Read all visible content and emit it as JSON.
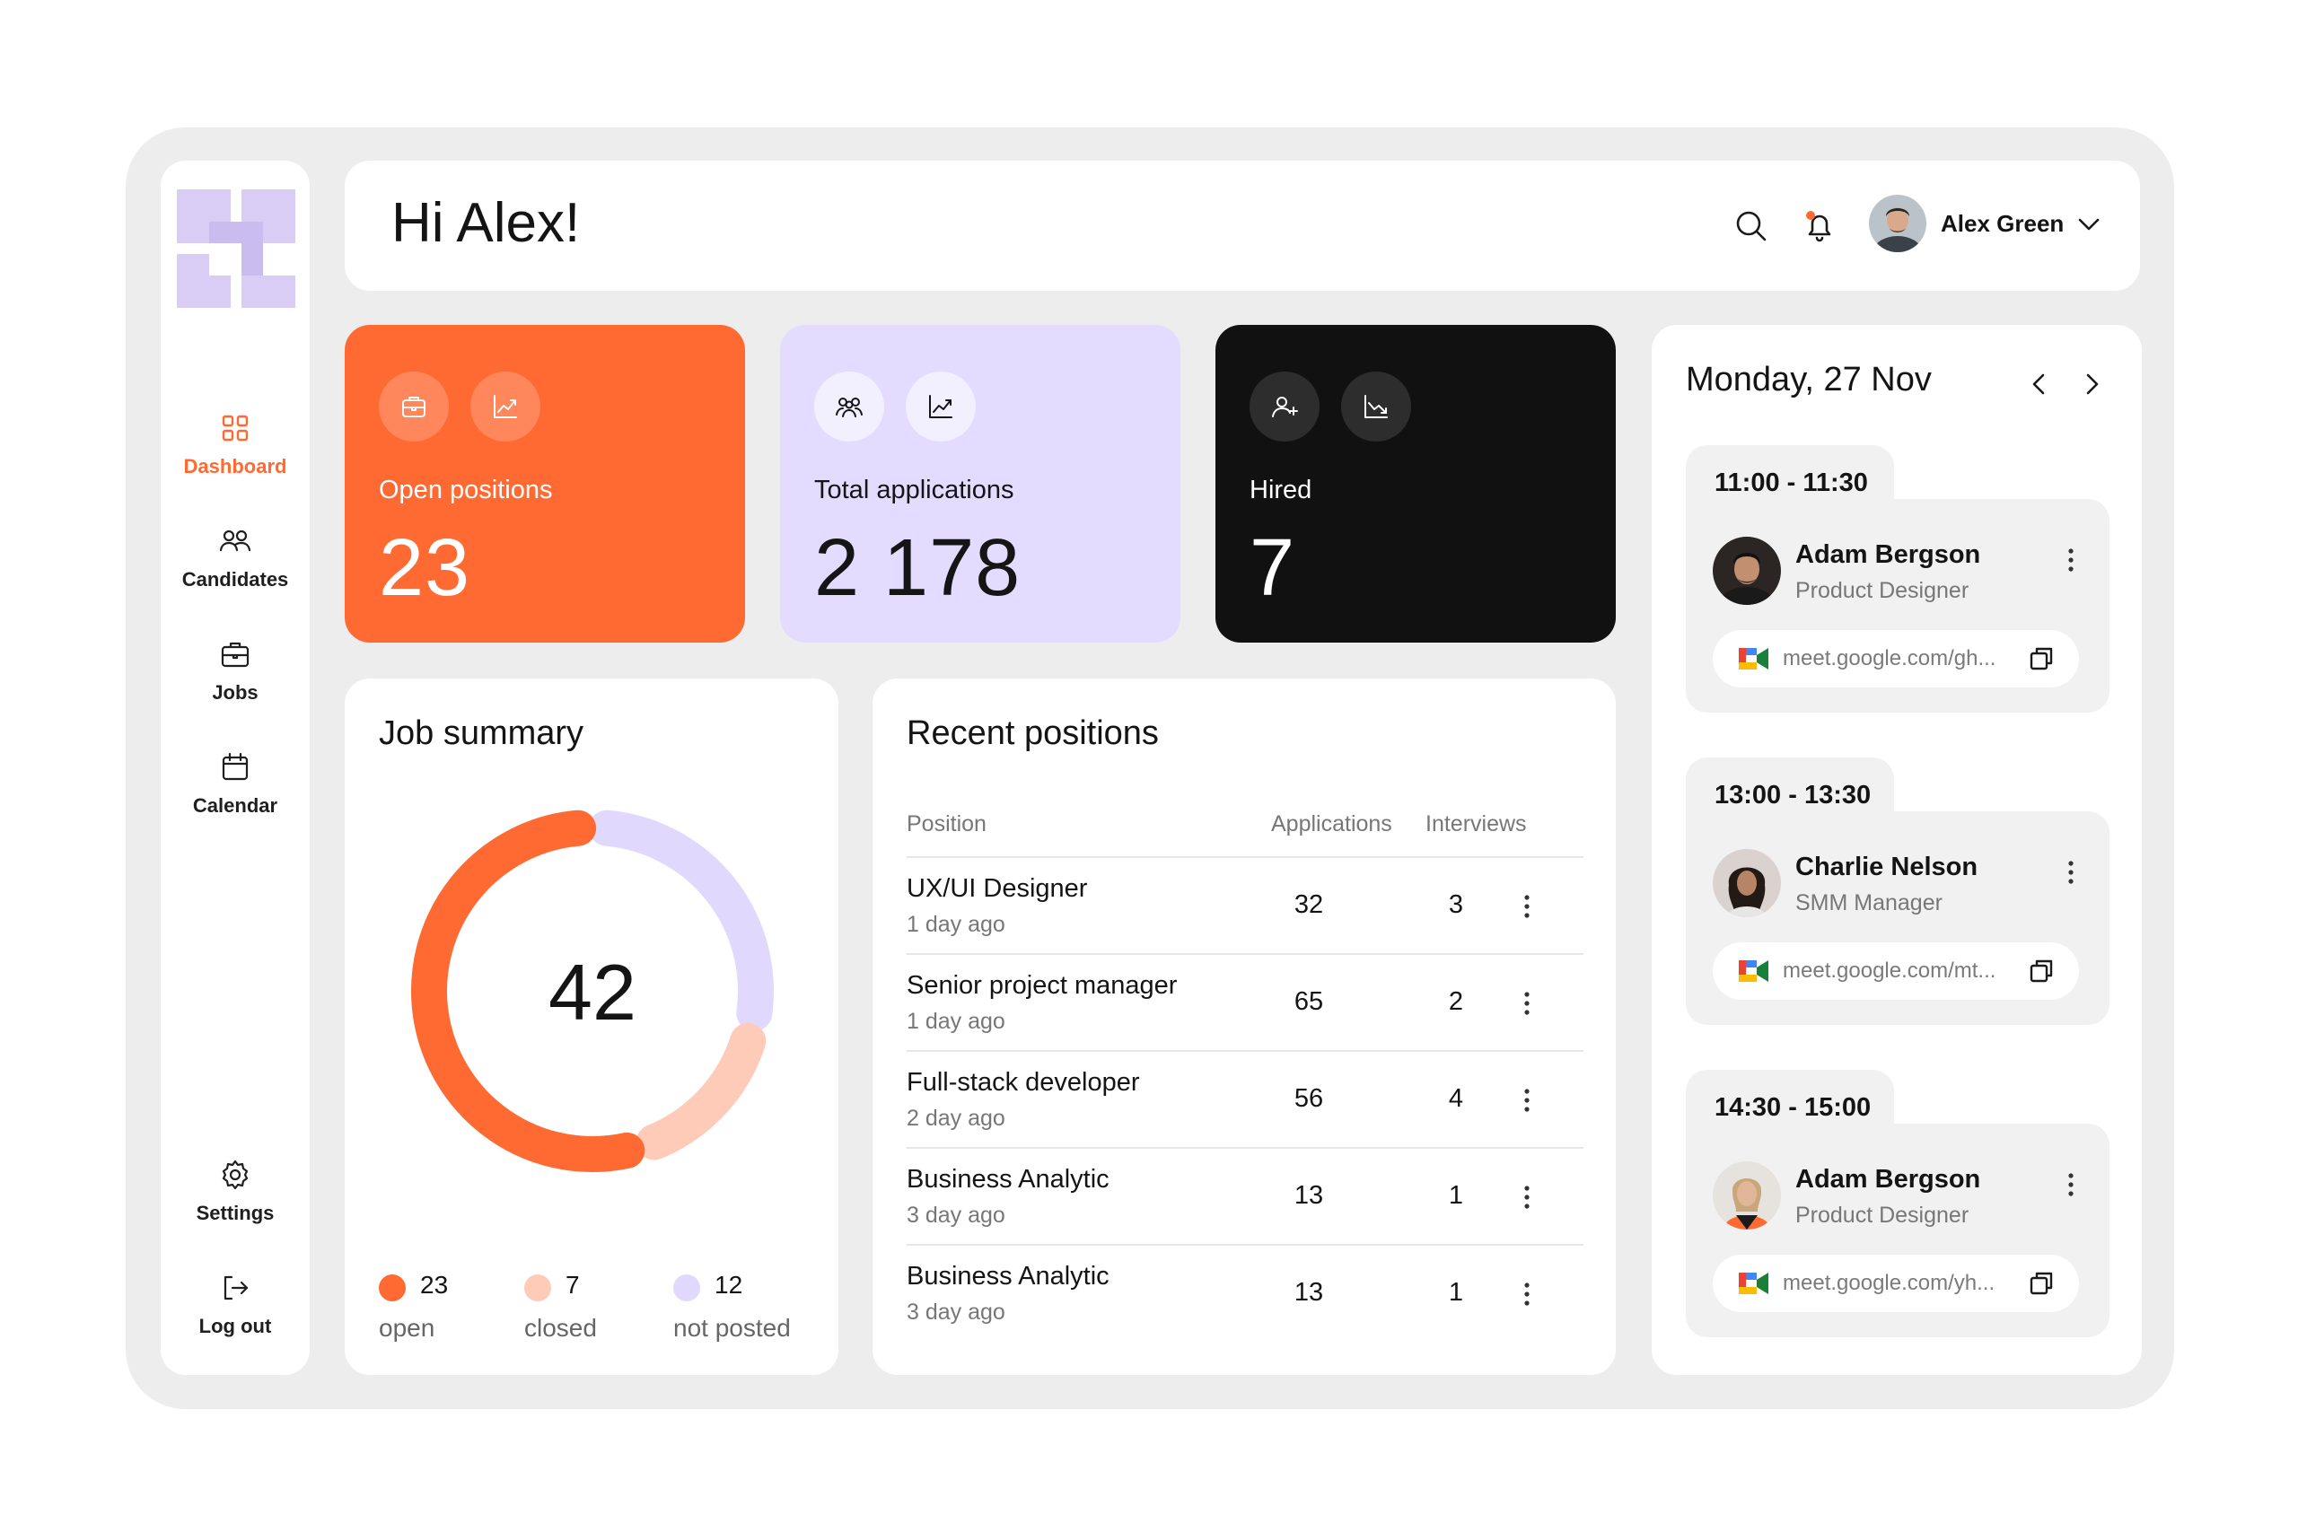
{
  "nav": {
    "items": [
      {
        "label": "Dashboard",
        "icon": "grid-icon"
      },
      {
        "label": "Candidates",
        "icon": "users-icon"
      },
      {
        "label": "Jobs",
        "icon": "briefcase-icon"
      },
      {
        "label": "Calendar",
        "icon": "calendar-icon"
      }
    ],
    "settings": "Settings",
    "logout": "Log out",
    "active": "Dashboard"
  },
  "header": {
    "greeting": "Hi Alex!",
    "user_name": "Alex Green"
  },
  "stats": [
    {
      "title": "Open positions",
      "value": "23"
    },
    {
      "title": "Total applications",
      "value": "2 178"
    },
    {
      "title": "Hired",
      "value": "7"
    }
  ],
  "job_summary": {
    "title": "Job summary",
    "total": "42",
    "legend": [
      {
        "value": "23",
        "label": "open",
        "color": "#ff6a33"
      },
      {
        "value": "7",
        "label": "closed",
        "color": "#fdcbb8"
      },
      {
        "value": "12",
        "label": "not posted",
        "color": "#e0d9fd"
      }
    ]
  },
  "recent": {
    "title": "Recent positions",
    "columns": {
      "position": "Position",
      "applications": "Applications",
      "interviews": "Interviews"
    },
    "rows": [
      {
        "position": "UX/UI Designer",
        "ago": "1 day ago",
        "applications": "32",
        "interviews": "3"
      },
      {
        "position": "Senior project manager",
        "ago": "1 day ago",
        "applications": "65",
        "interviews": "2"
      },
      {
        "position": "Full-stack developer",
        "ago": "2 day ago",
        "applications": "56",
        "interviews": "4"
      },
      {
        "position": "Business Analytic",
        "ago": "3 day ago",
        "applications": "13",
        "interviews": "1"
      },
      {
        "position": "Business Analytic",
        "ago": "3 day ago",
        "applications": "13",
        "interviews": "1"
      }
    ]
  },
  "calendar": {
    "date": "Monday, 27 Nov",
    "events": [
      {
        "time": "11:00 - 11:30",
        "name": "Adam Bergson",
        "role": "Product Designer",
        "link": "meet.google.com/gh..."
      },
      {
        "time": "13:00 - 13:30",
        "name": "Charlie Nelson",
        "role": "SMM Manager",
        "link": "meet.google.com/mt..."
      },
      {
        "time": "14:30 - 15:00",
        "name": "Adam Bergson",
        "role": "Product Designer",
        "link": "meet.google.com/yh..."
      }
    ]
  },
  "colors": {
    "accent": "#ff6a33",
    "lavender": "#e3dcff",
    "dark": "#111111",
    "peach": "#fdcbb8"
  }
}
